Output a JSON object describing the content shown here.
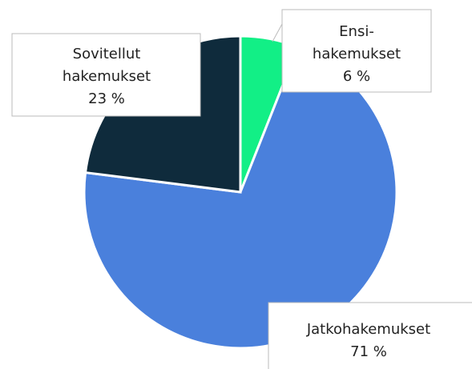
{
  "chart_data": {
    "type": "pie",
    "categories": [
      "Ensi-hakemukset",
      "Jatkohakemukset",
      "Sovitellut hakemukset"
    ],
    "values": [
      6,
      71,
      23
    ],
    "value_labels": [
      "6 %",
      "71 %",
      "23 %"
    ],
    "colors": [
      "#12ef86",
      "#4a80dc",
      "#0f2b3c"
    ]
  }
}
